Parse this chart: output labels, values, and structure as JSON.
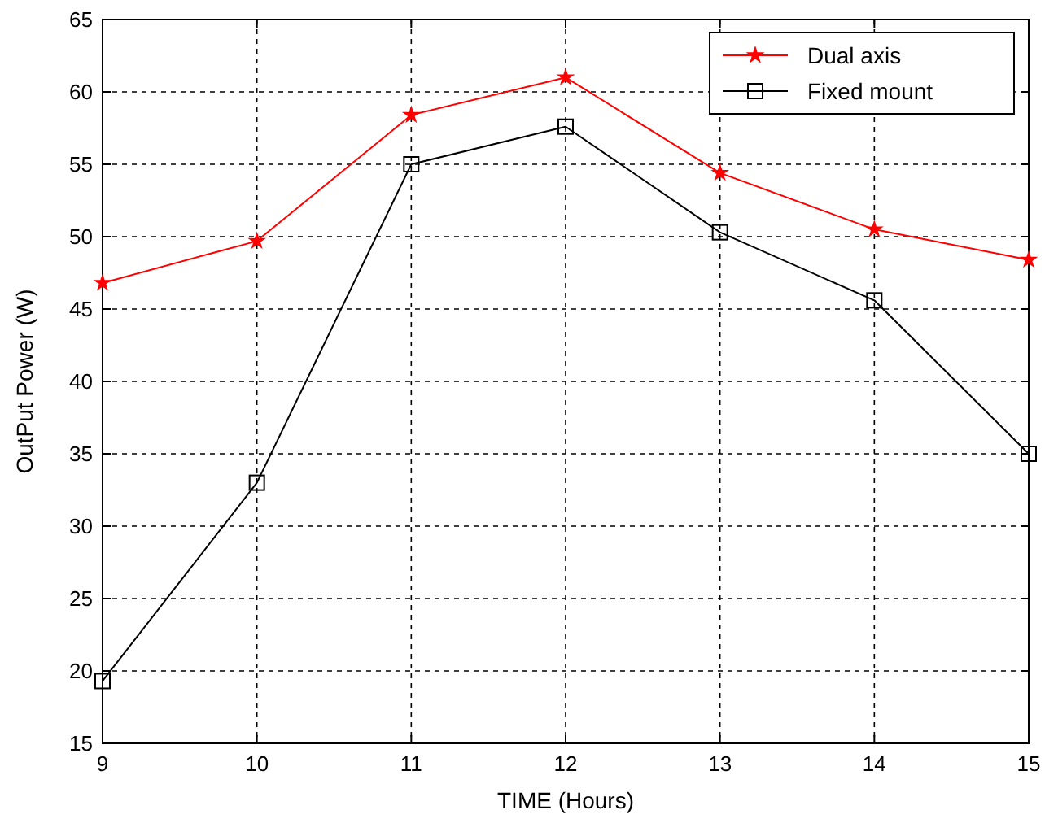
{
  "chart_data": {
    "type": "line",
    "xlabel": "TIME  (Hours)",
    "ylabel": "OutPut Power (W)",
    "x": [
      9,
      10,
      11,
      12,
      13,
      14,
      15
    ],
    "series": [
      {
        "name": "Dual axis",
        "color": "#ff0000",
        "marker": "star",
        "values": [
          46.8,
          49.7,
          58.4,
          61,
          54.4,
          50.5,
          48.4
        ]
      },
      {
        "name": "Fixed mount",
        "color": "#000000",
        "marker": "square",
        "values": [
          19.3,
          33,
          55,
          57.6,
          50.3,
          45.6,
          35
        ]
      }
    ],
    "xlim": [
      9,
      15
    ],
    "xticks": [
      9,
      10,
      11,
      12,
      13,
      14,
      15
    ],
    "ylim": [
      15,
      65
    ],
    "yticks": [
      15,
      20,
      25,
      30,
      35,
      40,
      45,
      50,
      55,
      60,
      65
    ],
    "grid": true,
    "legend": "top right",
    "line_style": "solid"
  }
}
